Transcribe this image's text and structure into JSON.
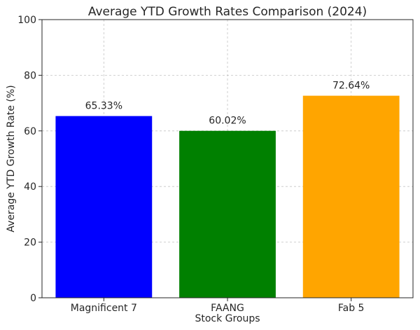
{
  "chart_data": {
    "type": "bar",
    "title": "Average YTD Growth Rates Comparison (2024)",
    "xlabel": "Stock Groups",
    "ylabel": "Average YTD Growth Rate (%)",
    "categories": [
      "Magnificent 7",
      "FAANG",
      "Fab 5"
    ],
    "values": [
      65.33,
      60.02,
      72.64
    ],
    "data_labels": [
      "65.33%",
      "60.02%",
      "72.64%"
    ],
    "colors": [
      "#0000ff",
      "#008000",
      "#ffa500"
    ],
    "ylim": [
      0,
      100
    ],
    "yticks": [
      0,
      20,
      40,
      60,
      80,
      100
    ],
    "grid": true,
    "legend": "none"
  }
}
